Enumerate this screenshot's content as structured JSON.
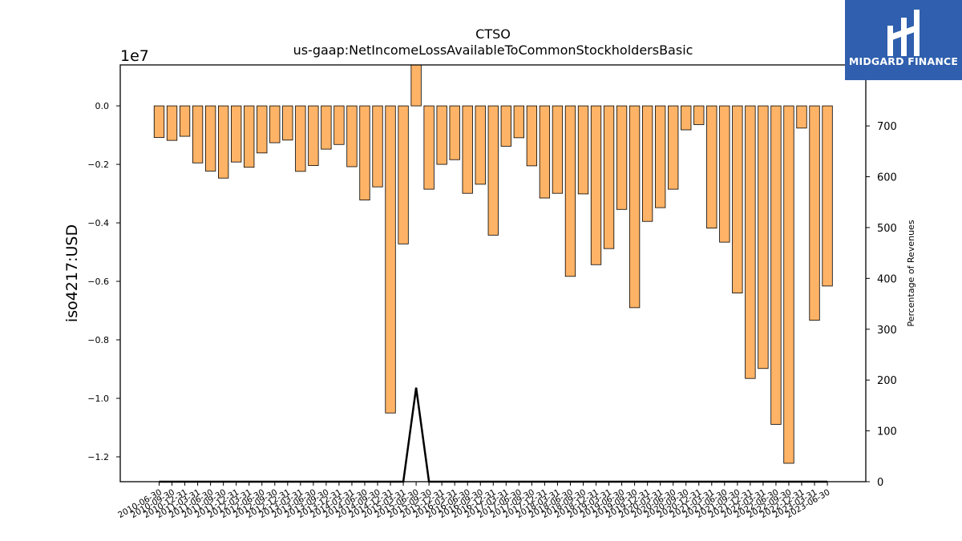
{
  "chart_data": {
    "type": "bar",
    "title": "CTSO",
    "subtitle": "us-gaap:NetIncomeLossAvailableToCommonStockholdersBasic",
    "ylabel": "iso4217:USD",
    "y2label": "Percentage of Revenues",
    "y_scale_label": "1e7",
    "ylim": [
      -12850000,
      1400000
    ],
    "y2lim": [
      0,
      820
    ],
    "y_ticks": [
      0.0,
      -0.2,
      -0.4,
      -0.6,
      -0.8,
      -1.0,
      -1.2
    ],
    "y_tick_labels": [
      "0.0",
      "−0.2",
      "−0.4",
      "−0.6",
      "−0.8",
      "−1.0",
      "−1.2"
    ],
    "y2_ticks": [
      0,
      100,
      200,
      300,
      400,
      500,
      600,
      700
    ],
    "y2_tick_labels": [
      "0",
      "100",
      "200",
      "300",
      "400",
      "500",
      "600",
      "700"
    ],
    "categories": [
      "2010-06-30",
      "2010-09-30",
      "2010-12-31",
      "2011-03-31",
      "2011-06-30",
      "2011-09-30",
      "2011-12-31",
      "2012-03-31",
      "2012-06-30",
      "2012-09-30",
      "2012-12-31",
      "2013-03-31",
      "2013-06-30",
      "2013-09-30",
      "2013-12-31",
      "2014-03-31",
      "2014-06-30",
      "2014-09-30",
      "2014-12-31",
      "2015-03-31",
      "2015-06-30",
      "2015-09-30",
      "2015-12-31",
      "2016-03-31",
      "2016-06-30",
      "2016-09-30",
      "2016-12-31",
      "2017-03-31",
      "2017-06-30",
      "2017-09-30",
      "2017-12-31",
      "2018-03-31",
      "2018-06-30",
      "2018-09-30",
      "2018-12-31",
      "2019-03-31",
      "2019-06-30",
      "2019-09-30",
      "2019-12-31",
      "2020-03-31",
      "2020-06-30",
      "2020-09-30",
      "2020-12-31",
      "2021-03-31",
      "2021-06-30",
      "2021-09-30",
      "2021-12-31",
      "2022-03-31",
      "2022-06-30",
      "2022-09-30",
      "2022-12-31",
      "2023-03-31",
      "2023-06-30"
    ],
    "series": [
      {
        "type": "bar",
        "values": [
          -1080000,
          -1180000,
          -1040000,
          -1950000,
          -2230000,
          -2470000,
          -1920000,
          -2100000,
          -1610000,
          -1260000,
          -1170000,
          -2240000,
          -2040000,
          -1480000,
          -1320000,
          -2080000,
          -3220000,
          -2770000,
          -10500000,
          -4720000,
          1400000,
          -2850000,
          -2000000,
          -1840000,
          -2990000,
          -2680000,
          -4420000,
          -1380000,
          -1090000,
          -2050000,
          -3150000,
          -2990000,
          -5830000,
          -3010000,
          -5430000,
          -4880000,
          -3540000,
          -6900000,
          -3950000,
          -3480000,
          -2850000,
          -820000,
          -640000,
          -4180000,
          -4660000,
          -6400000,
          -9320000,
          -8980000,
          -10890000,
          -12220000,
          -760000,
          -7330000,
          -6160000
        ]
      },
      {
        "type": "line",
        "values": [
          0,
          0,
          0,
          0,
          0,
          0,
          0,
          0,
          0,
          0,
          0,
          0,
          0,
          0,
          0,
          0,
          0,
          0,
          0,
          0,
          185,
          0,
          0,
          0,
          0,
          0,
          0,
          0,
          0,
          0,
          0,
          0,
          0,
          0,
          0,
          0,
          0,
          0,
          0,
          0,
          0,
          0,
          0,
          0,
          0,
          0,
          0,
          0,
          0,
          0,
          0,
          0,
          0
        ]
      }
    ],
    "colors": {
      "bar_fill": "#ffb366",
      "bar_edge": "#000000",
      "line": "#000000"
    },
    "grid": false
  },
  "logo": {
    "text": "MIDGARD FINANCE"
  }
}
